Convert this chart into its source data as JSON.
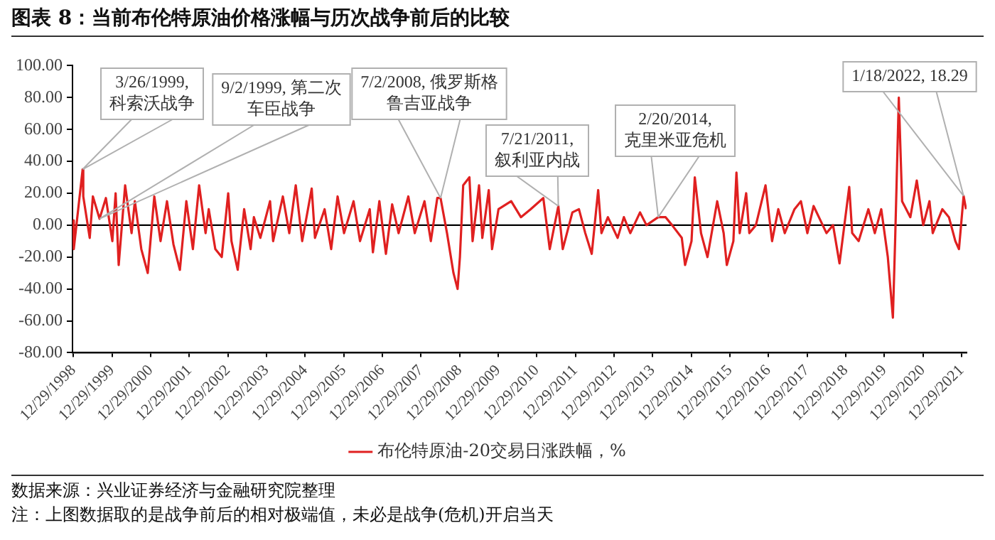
{
  "chart_data": {
    "type": "line",
    "title": "图表 8：当前布伦特原油价格涨幅与历次战争前后的比较",
    "x": [
      "1998-12-29",
      "1999-01",
      "1999-03-26",
      "1999-04",
      "1999-06",
      "1999-07",
      "1999-09-02",
      "1999-11",
      "2000-01",
      "2000-02",
      "2000-03",
      "2000-05",
      "2000-07",
      "2000-08",
      "2000-10",
      "2000-12",
      "2001-02",
      "2001-04",
      "2001-06",
      "2001-08",
      "2001-10",
      "2001-12",
      "2002-02",
      "2002-04",
      "2002-06",
      "2002-07",
      "2002-09",
      "2002-11",
      "2003-01",
      "2003-02",
      "2003-04",
      "2003-06",
      "2003-08",
      "2003-09",
      "2003-11",
      "2004-02",
      "2004-03",
      "2004-06",
      "2004-08",
      "2004-10",
      "2004-12",
      "2005-03",
      "2005-04",
      "2005-07",
      "2005-09",
      "2005-11",
      "2006-01",
      "2006-04",
      "2006-06",
      "2006-09",
      "2006-10",
      "2006-12",
      "2007-02",
      "2007-04",
      "2007-06",
      "2007-09",
      "2007-11",
      "2008-02",
      "2008-04",
      "2008-06",
      "2008-07-02",
      "2008-09",
      "2008-11",
      "2008-12-10",
      "2009-01",
      "2009-02",
      "2009-04",
      "2009-05",
      "2009-07",
      "2009-08",
      "2009-10",
      "2009-11",
      "2010-01",
      "2010-05",
      "2010-08",
      "2010-11",
      "2011-03",
      "2011-05",
      "2011-07-21",
      "2011-09",
      "2011-12",
      "2012-02",
      "2012-04",
      "2012-06",
      "2012-08",
      "2012-09",
      "2012-11",
      "2013-02",
      "2013-04",
      "2013-06",
      "2013-09",
      "2013-11",
      "2014-02-20",
      "2014-05",
      "2014-07",
      "2014-10",
      "2014-11",
      "2015-01",
      "2015-02",
      "2015-04",
      "2015-06",
      "2015-09",
      "2015-11",
      "2015-12",
      "2016-02",
      "2016-03",
      "2016-04",
      "2016-06",
      "2016-07",
      "2016-09",
      "2016-12",
      "2017-02",
      "2017-04",
      "2017-06",
      "2017-09",
      "2017-11",
      "2018-01",
      "2018-03",
      "2018-07",
      "2018-09",
      "2018-11",
      "2019-02",
      "2019-03",
      "2019-05",
      "2019-08",
      "2019-10",
      "2019-12",
      "2020-02",
      "2020-03-20",
      "2020-04-10",
      "2020-05-15",
      "2020-06-15",
      "2020-09",
      "2020-11",
      "2021-01",
      "2021-03",
      "2021-04",
      "2021-07",
      "2021-09",
      "2021-11",
      "2021-12-05",
      "2022-01-18",
      "2022-02-10"
    ],
    "series": [
      {
        "name": "布伦特原油-20交易日涨跌幅，%",
        "color": "#e02020",
        "values": [
          3,
          -15,
          35,
          18,
          -8,
          18,
          4,
          17,
          -10,
          20,
          -25,
          25,
          -5,
          15,
          -15,
          -30,
          18,
          -10,
          15,
          -12,
          -28,
          15,
          -15,
          25,
          -5,
          10,
          -15,
          -20,
          20,
          -10,
          -28,
          10,
          -15,
          5,
          -8,
          15,
          -10,
          18,
          -5,
          25,
          -10,
          23,
          -8,
          10,
          -15,
          18,
          -5,
          15,
          -10,
          10,
          -17,
          15,
          -18,
          13,
          -5,
          18,
          -5,
          15,
          -10,
          17,
          17,
          -5,
          -30,
          -40,
          -20,
          25,
          30,
          -10,
          25,
          -8,
          22,
          -15,
          10,
          15,
          5,
          10,
          17,
          -15,
          12,
          -15,
          8,
          10,
          -5,
          -18,
          22,
          -5,
          5,
          -8,
          5,
          -5,
          8,
          0,
          5,
          5,
          0,
          -8,
          -25,
          -10,
          30,
          -5,
          -20,
          15,
          -5,
          -25,
          -10,
          33,
          -5,
          20,
          -5,
          0,
          25,
          -10,
          10,
          -5,
          10,
          15,
          -5,
          12,
          -5,
          0,
          -24,
          24,
          -5,
          -10,
          10,
          -5,
          10,
          -20,
          -58,
          -10,
          80,
          15,
          5,
          28,
          0,
          15,
          -5,
          10,
          5,
          -10,
          -15,
          18.29,
          10
        ]
      }
    ],
    "xlim": [
      "1998-12-20",
      "2022-02-15"
    ],
    "xticks": [
      {
        "value": "1998-12-29",
        "label": "12/29/1998"
      },
      {
        "value": "1999-12-29",
        "label": "12/29/1999"
      },
      {
        "value": "2000-12-29",
        "label": "12/29/2000"
      },
      {
        "value": "2001-12-29",
        "label": "12/29/2001"
      },
      {
        "value": "2002-12-29",
        "label": "12/29/2002"
      },
      {
        "value": "2003-12-29",
        "label": "12/29/2003"
      },
      {
        "value": "2004-12-29",
        "label": "12/29/2004"
      },
      {
        "value": "2005-12-29",
        "label": "12/29/2005"
      },
      {
        "value": "2006-12-29",
        "label": "12/29/2006"
      },
      {
        "value": "2007-12-29",
        "label": "12/29/2007"
      },
      {
        "value": "2008-12-29",
        "label": "12/29/2008"
      },
      {
        "value": "2009-12-29",
        "label": "12/29/2009"
      },
      {
        "value": "2010-12-29",
        "label": "12/29/2010"
      },
      {
        "value": "2011-12-29",
        "label": "12/29/2011"
      },
      {
        "value": "2012-12-29",
        "label": "12/29/2012"
      },
      {
        "value": "2013-12-29",
        "label": "12/29/2013"
      },
      {
        "value": "2014-12-29",
        "label": "12/29/2014"
      },
      {
        "value": "2015-12-29",
        "label": "12/29/2015"
      },
      {
        "value": "2016-12-29",
        "label": "12/29/2016"
      },
      {
        "value": "2017-12-29",
        "label": "12/29/2017"
      },
      {
        "value": "2018-12-29",
        "label": "12/29/2018"
      },
      {
        "value": "2019-12-29",
        "label": "12/29/2019"
      },
      {
        "value": "2020-12-29",
        "label": "12/29/2020"
      },
      {
        "value": "2021-12-29",
        "label": "12/29/2021"
      }
    ],
    "ylim": [
      -80,
      100
    ],
    "yticks": [
      {
        "value": -80,
        "label": "-80.00"
      },
      {
        "value": -60,
        "label": "-60.00"
      },
      {
        "value": -40,
        "label": "-40.00"
      },
      {
        "value": -20,
        "label": "-20.00"
      },
      {
        "value": 0,
        "label": "0.00"
      },
      {
        "value": 20,
        "label": "20.00"
      },
      {
        "value": 40,
        "label": "40.00"
      },
      {
        "value": 60,
        "label": "60.00"
      },
      {
        "value": 80,
        "label": "80.00"
      },
      {
        "value": 100,
        "label": "100.00"
      }
    ],
    "ref_lines": [
      {
        "axis": "y",
        "value": 0,
        "color": "#000000"
      }
    ],
    "grid": false,
    "legend": "bottom",
    "marker": "none",
    "line_style": "solid",
    "annotations": [
      {
        "text": "3/26/1999,\n科索沃战争",
        "x": "1999-03-26",
        "y": 35
      },
      {
        "text": "9/2/1999, 第二次车臣战争",
        "x": "1999-09-02",
        "y": 4
      },
      {
        "text": "7/2/2008, 俄罗斯格鲁吉亚战争",
        "x": "2008-07-02",
        "y": 17
      },
      {
        "text": "7/21/2011,\n叙利亚内战",
        "x": "2011-07-21",
        "y": 12
      },
      {
        "text": "2/20/2014,\n克里米亚危机",
        "x": "2014-02-20",
        "y": 5
      },
      {
        "text": "1/18/2022, 18.29",
        "x": "2022-01-18",
        "y": 18.29
      },
      "数据来源：兴业证券经济与金融研究院整理",
      "注：上图数据取的是战争前后的相对极端值，未必是战争(危机)开启当天"
    ]
  }
}
